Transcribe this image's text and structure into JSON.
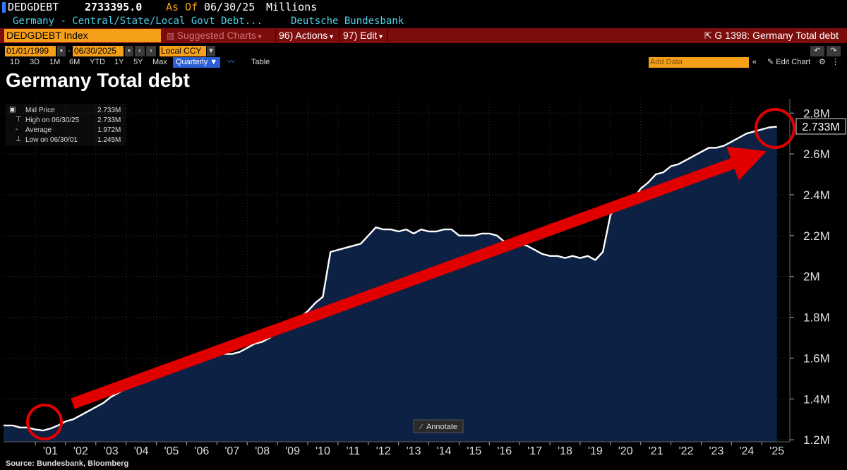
{
  "header": {
    "ticker": "DEDGDEBT",
    "last_value": "2733395.0",
    "as_of_label": "As Of",
    "as_of_date": "06/30/25",
    "units": "Millions",
    "description": "Germany - Central/State/Local Govt Debt...",
    "source": "Deutsche Bundesbank"
  },
  "menu": {
    "security": "DEDGDEBT Index",
    "suggested": "Suggested Charts",
    "actions": "96) Actions",
    "edit": "97) Edit",
    "chart_title": "G 1398: Germany Total debt"
  },
  "dates": {
    "start": "01/01/1999",
    "end": "06/30/2025",
    "currency": "Local CCY"
  },
  "ranges": {
    "items": [
      "1D",
      "3D",
      "1M",
      "6M",
      "YTD",
      "1Y",
      "5Y",
      "Max"
    ],
    "period": "Quarterly",
    "table": "Table",
    "add_data_placeholder": "Add Data",
    "edit_chart": "Edit Chart"
  },
  "legend": {
    "mid_label": "Mid Price",
    "mid_value": "2.733M",
    "high_label": "High on 06/30/25",
    "high_value": "2.733M",
    "avg_label": "Average",
    "avg_value": "1.972M",
    "low_label": "Low on 06/30/01",
    "low_value": "1.245M"
  },
  "annotate_label": "Annotate",
  "colors": {
    "line": "#ffffff",
    "area": "#0d2145",
    "arrow": "#e00000",
    "highlight": "#f6a01a",
    "menu_bg": "#7d0d0d"
  },
  "chart_data": {
    "type": "area",
    "title": "Germany Total debt",
    "source": "Source: Bundesbank, Bloomberg",
    "last_label": "2.733M",
    "ylim": [
      1.19,
      2.87
    ],
    "yticks": [
      1.2,
      1.4,
      1.6,
      1.8,
      2.0,
      2.2,
      2.4,
      2.6,
      2.8
    ],
    "ytick_labels": [
      "1.2M",
      "1.4M",
      "1.6M",
      "1.8M",
      "2M",
      "2.2M",
      "2.4M",
      "2.6M",
      "2.8M"
    ],
    "xlim": [
      1999.95,
      2025.67
    ],
    "xtick_labels": [
      "'01",
      "'02",
      "'03",
      "'04",
      "'05",
      "'06",
      "'07",
      "'08",
      "'09",
      "'10",
      "'11",
      "'12",
      "'13",
      "'14",
      "'15",
      "'16",
      "'17",
      "'18",
      "'19",
      "'20",
      "'21",
      "'22",
      "'23",
      "'24",
      "'25"
    ],
    "x": [
      2000.0,
      2000.25,
      2000.5,
      2000.75,
      2001.0,
      2001.25,
      2001.5,
      2001.75,
      2002.0,
      2002.25,
      2002.5,
      2002.75,
      2003.0,
      2003.25,
      2003.5,
      2003.75,
      2004.0,
      2004.25,
      2004.5,
      2004.75,
      2005.0,
      2005.25,
      2005.5,
      2005.75,
      2006.0,
      2006.25,
      2006.5,
      2006.75,
      2007.0,
      2007.25,
      2007.5,
      2007.75,
      2008.0,
      2008.25,
      2008.5,
      2008.75,
      2009.0,
      2009.25,
      2009.5,
      2009.75,
      2010.0,
      2010.25,
      2010.5,
      2010.75,
      2011.0,
      2011.25,
      2011.5,
      2011.75,
      2012.0,
      2012.25,
      2012.5,
      2012.75,
      2013.0,
      2013.25,
      2013.5,
      2013.75,
      2014.0,
      2014.25,
      2014.5,
      2014.75,
      2015.0,
      2015.25,
      2015.5,
      2015.75,
      2016.0,
      2016.25,
      2016.5,
      2016.75,
      2017.0,
      2017.25,
      2017.5,
      2017.75,
      2018.0,
      2018.25,
      2018.5,
      2018.75,
      2019.0,
      2019.25,
      2019.5,
      2019.75,
      2020.0,
      2020.25,
      2020.5,
      2020.75,
      2021.0,
      2021.25,
      2021.5,
      2021.75,
      2022.0,
      2022.25,
      2022.5,
      2022.75,
      2023.0,
      2023.25,
      2023.5,
      2023.75,
      2024.0,
      2024.25,
      2024.5,
      2024.75,
      2025.0,
      2025.25,
      2025.5
    ],
    "values": [
      1.27,
      1.27,
      1.26,
      1.26,
      1.25,
      1.245,
      1.255,
      1.27,
      1.29,
      1.3,
      1.32,
      1.34,
      1.36,
      1.38,
      1.41,
      1.43,
      1.45,
      1.47,
      1.49,
      1.51,
      1.52,
      1.54,
      1.55,
      1.56,
      1.57,
      1.58,
      1.6,
      1.62,
      1.63,
      1.62,
      1.62,
      1.63,
      1.65,
      1.67,
      1.68,
      1.7,
      1.73,
      1.76,
      1.78,
      1.8,
      1.83,
      1.87,
      1.9,
      2.12,
      2.13,
      2.14,
      2.15,
      2.16,
      2.2,
      2.24,
      2.23,
      2.23,
      2.22,
      2.23,
      2.21,
      2.23,
      2.22,
      2.22,
      2.23,
      2.23,
      2.2,
      2.2,
      2.2,
      2.21,
      2.21,
      2.2,
      2.17,
      2.16,
      2.16,
      2.15,
      2.13,
      2.11,
      2.1,
      2.1,
      2.09,
      2.1,
      2.09,
      2.1,
      2.08,
      2.12,
      2.3,
      2.36,
      2.35,
      2.38,
      2.43,
      2.46,
      2.5,
      2.51,
      2.54,
      2.55,
      2.57,
      2.59,
      2.61,
      2.63,
      2.63,
      2.64,
      2.66,
      2.68,
      2.7,
      2.71,
      2.72,
      2.73,
      2.733
    ]
  }
}
